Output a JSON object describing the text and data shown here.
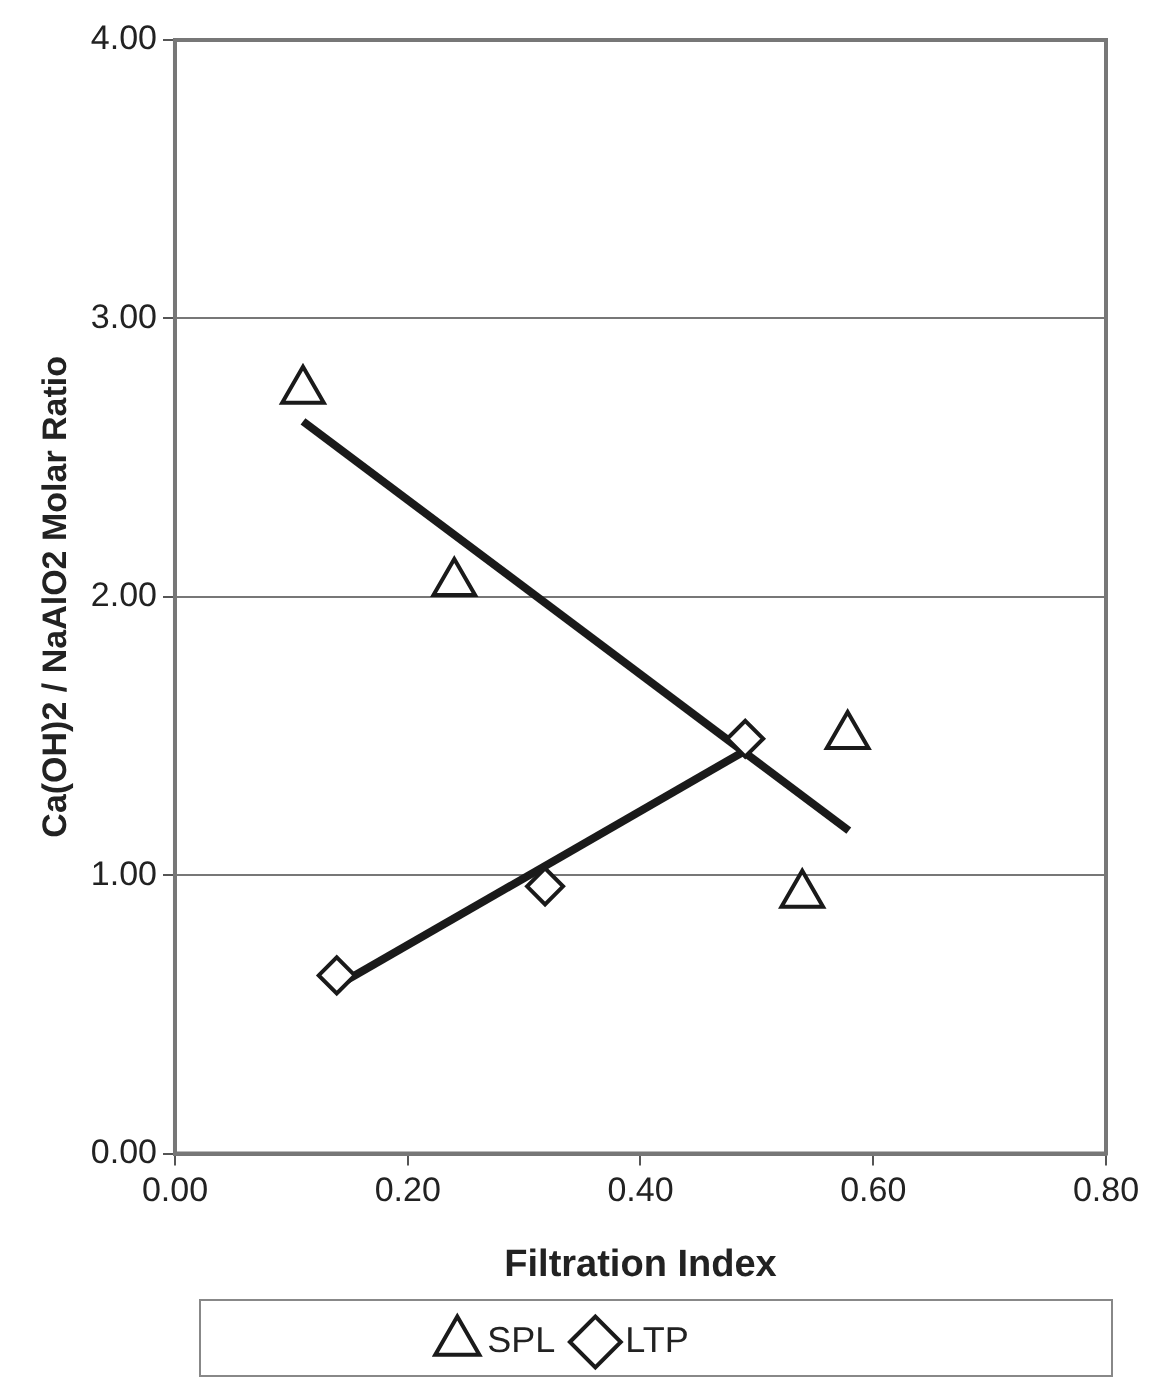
{
  "chart_data": {
    "type": "scatter",
    "xlabel": "Filtration Index",
    "ylabel": "Ca(OH)2 / NaAlO2 Molar Ratio",
    "xlim": [
      0,
      0.8
    ],
    "xticks": [
      {
        "value": 0,
        "label": "0.00"
      },
      {
        "value": 0.2,
        "label": "0.20"
      },
      {
        "value": 0.4,
        "label": "0.40"
      },
      {
        "value": 0.6,
        "label": "0.60"
      },
      {
        "value": 0.8,
        "label": "0.80"
      }
    ],
    "ylim": [
      0,
      4
    ],
    "yticks": [
      {
        "value": 0,
        "label": "0.00"
      },
      {
        "value": 1,
        "label": "1.00"
      },
      {
        "value": 2,
        "label": "2.00"
      },
      {
        "value": 3,
        "label": "3.00"
      },
      {
        "value": 4,
        "label": "4.00"
      }
    ],
    "grid": "y",
    "legend": "bottom",
    "series": [
      {
        "name": "SPL",
        "color": "#1a1a1a",
        "marker": "triangle",
        "x": [
          0.11,
          0.24,
          0.578,
          0.539
        ],
        "values": [
          2.74,
          2.05,
          1.5,
          0.93
        ]
      },
      {
        "name": "LTP",
        "color": "#1a1a1a",
        "marker": "diamond",
        "x": [
          0.139,
          0.318,
          0.49
        ],
        "values": [
          0.64,
          0.96,
          1.49
        ]
      },
      {
        "type": "line",
        "color": "#1a1a1a",
        "marker": "none",
        "x": [
          0.11,
          0.579
        ],
        "values": [
          2.63,
          1.16
        ]
      },
      {
        "type": "line",
        "color": "#1a1a1a",
        "marker": "none",
        "x": [
          0.138,
          0.487
        ],
        "values": [
          0.6,
          1.44
        ]
      }
    ]
  }
}
